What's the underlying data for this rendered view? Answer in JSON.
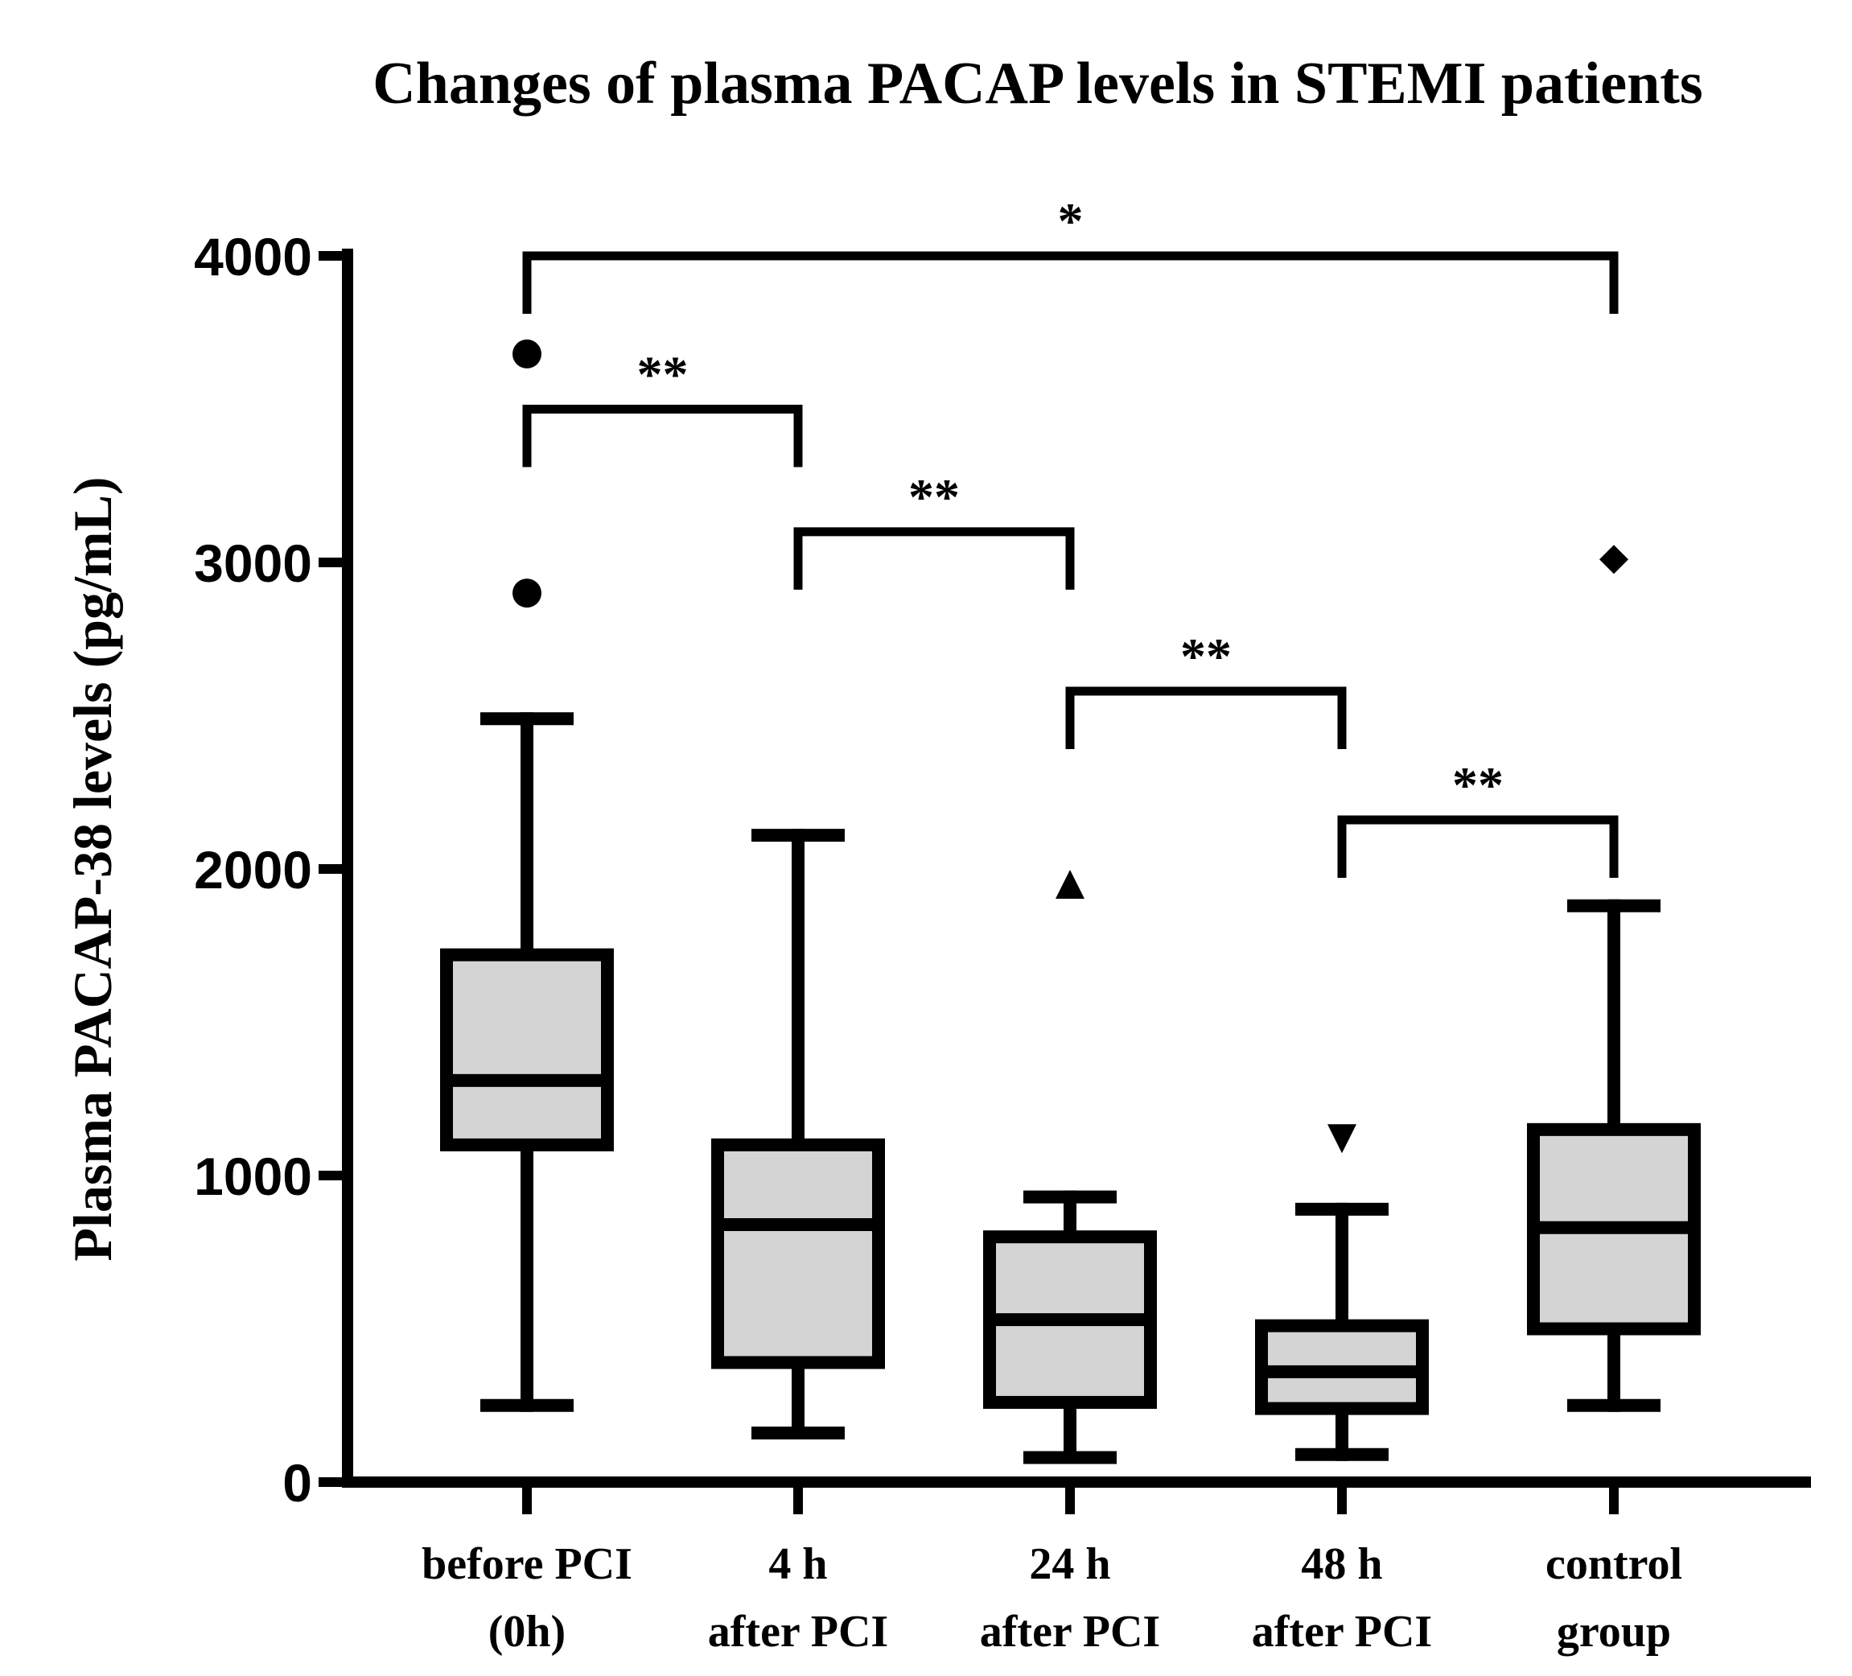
{
  "chart_data": {
    "type": "box",
    "title": "Changes of plasma PACAP levels in STEMI patients",
    "xlabel": "",
    "ylabel": "Plasma PACAP-38 levels (pg/mL)",
    "ylim": [
      0,
      4000
    ],
    "yticks": [
      "0",
      "1000",
      "2000",
      "3000",
      "4000"
    ],
    "categories": [
      [
        "before PCI",
        "(0h)"
      ],
      [
        "4 h",
        "after PCI"
      ],
      [
        "24 h",
        "after PCI"
      ],
      [
        "48 h",
        "after PCI"
      ],
      [
        "control",
        "group"
      ]
    ],
    "box_fill": "#d4d4d4",
    "stroke": "#000000",
    "boxes": [
      {
        "whisker_low": 250,
        "q1": 1100,
        "median": 1310,
        "q3": 1720,
        "whisker_high": 2490,
        "outliers": [
          2900,
          3680
        ],
        "outlier_marker": "circle"
      },
      {
        "whisker_low": 160,
        "q1": 390,
        "median": 840,
        "q3": 1100,
        "whisker_high": 2110,
        "outliers": [],
        "outlier_marker": "square"
      },
      {
        "whisker_low": 80,
        "q1": 260,
        "median": 530,
        "q3": 800,
        "whisker_high": 930,
        "outliers": [
          1950
        ],
        "outlier_marker": "triangle-up"
      },
      {
        "whisker_low": 90,
        "q1": 240,
        "median": 360,
        "q3": 510,
        "whisker_high": 890,
        "outliers": [
          1120
        ],
        "outlier_marker": "triangle-down"
      },
      {
        "whisker_low": 250,
        "q1": 500,
        "median": 830,
        "q3": 1150,
        "whisker_high": 1880,
        "outliers": [
          3010
        ],
        "outlier_marker": "diamond"
      }
    ],
    "significance": [
      {
        "from": 0,
        "to": 4,
        "label": "*",
        "y": 4000
      },
      {
        "from": 0,
        "to": 1,
        "label": "**",
        "y": 3500
      },
      {
        "from": 1,
        "to": 2,
        "label": "**",
        "y": 3100
      },
      {
        "from": 2,
        "to": 3,
        "label": "**",
        "y": 2580
      },
      {
        "from": 3,
        "to": 4,
        "label": "**",
        "y": 2160
      }
    ],
    "grid": false,
    "legend": "none"
  }
}
